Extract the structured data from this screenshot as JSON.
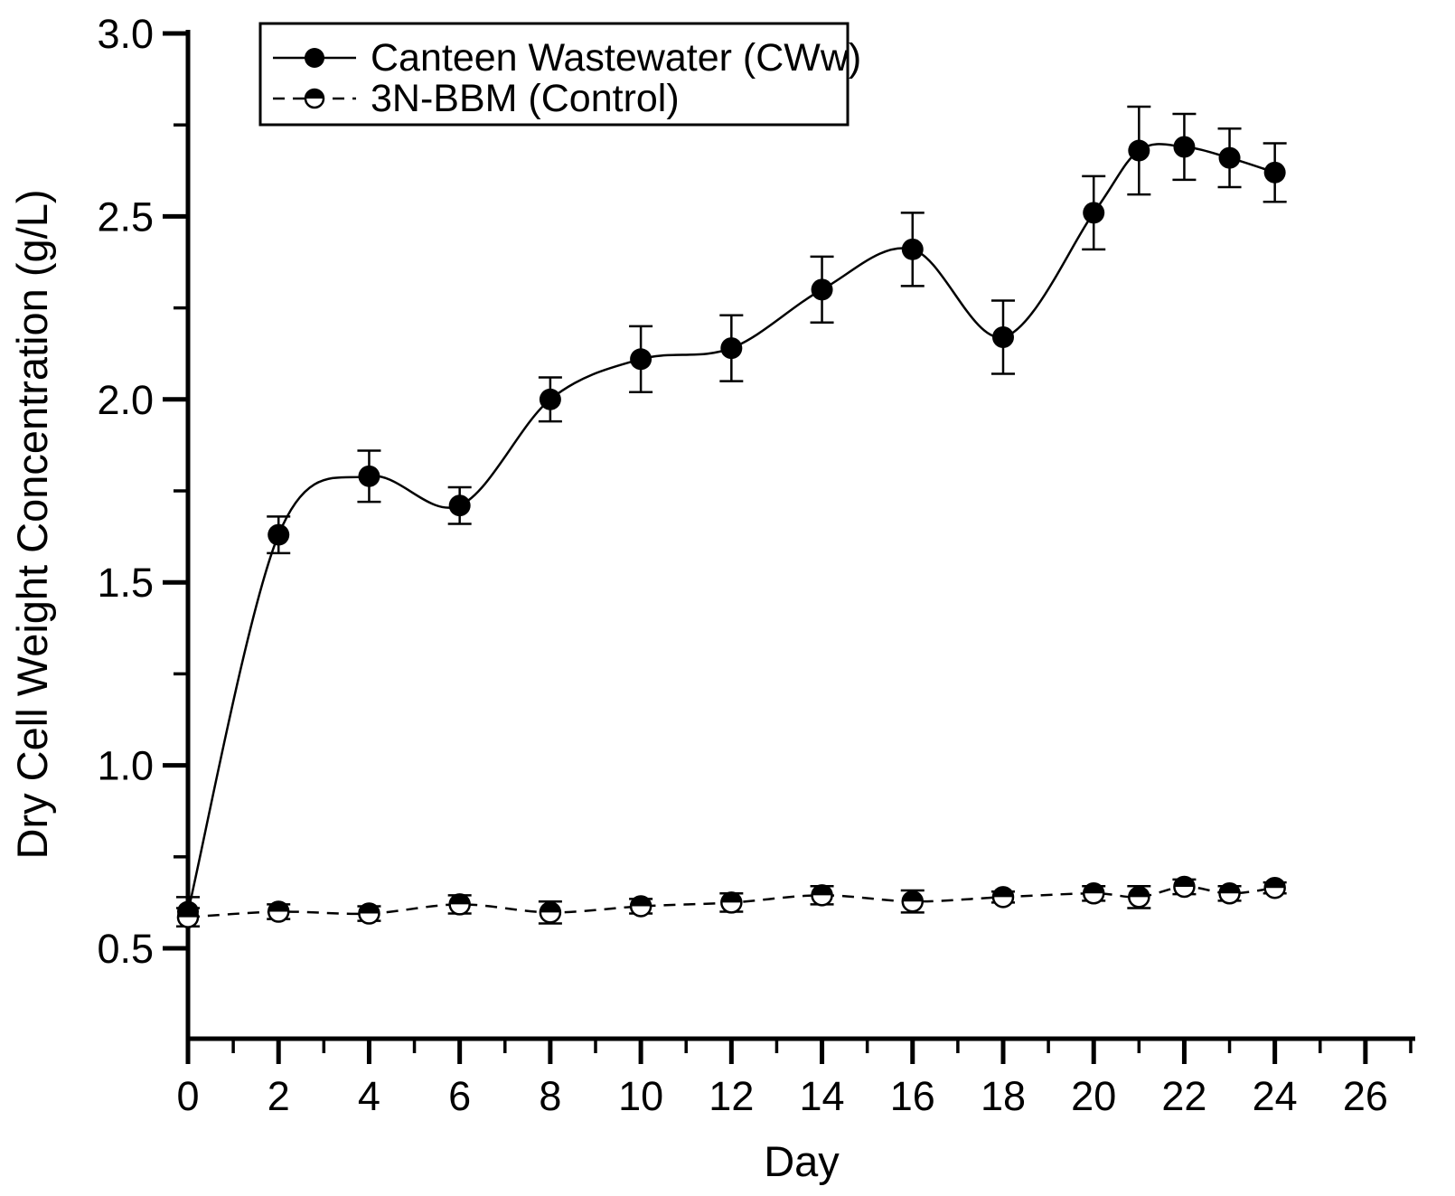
{
  "figure": {
    "background": "#ffffff",
    "foreground": "#000000"
  },
  "chart_data": {
    "type": "line",
    "title": "",
    "xlabel": "Day",
    "ylabel": "Dry Cell Weight Concentration (g/L)",
    "xlim": [
      0,
      27.1
    ],
    "ylim": [
      0.253,
      3.0
    ],
    "grid": false,
    "legend_position": "top-left-inside",
    "x_ticks": {
      "major": [
        0,
        2,
        4,
        6,
        8,
        10,
        12,
        14,
        16,
        18,
        20,
        22,
        24,
        26
      ],
      "labels": [
        "0",
        "2",
        "4",
        "6",
        "8",
        "10",
        "12",
        "14",
        "16",
        "18",
        "20",
        "22",
        "24",
        "26"
      ],
      "minor": [
        1,
        3,
        5,
        7,
        9,
        11,
        13,
        15,
        17,
        19,
        21,
        23,
        25,
        27
      ]
    },
    "y_ticks": {
      "major": [
        3.0,
        2.5,
        2.0,
        1.5,
        1.0,
        0.5
      ],
      "labels": [
        "3.0",
        "2.5",
        "2.0",
        "1.5",
        "1.0",
        "0.5"
      ],
      "minor": [
        2.75,
        2.25,
        1.75,
        1.25,
        0.75
      ]
    },
    "series": [
      {
        "name": "Canteen Wastewater (CWw)",
        "marker": "filled-circle",
        "line_style": "solid",
        "color": "#000000",
        "x": [
          0,
          2,
          4,
          6,
          8,
          10,
          12,
          14,
          16,
          18,
          20,
          21,
          22,
          23,
          24
        ],
        "y": [
          0.6,
          1.63,
          1.79,
          1.71,
          2.0,
          2.11,
          2.14,
          2.3,
          2.41,
          2.17,
          2.51,
          2.68,
          2.69,
          2.66,
          2.62
        ],
        "yerr": [
          0.04,
          0.05,
          0.07,
          0.05,
          0.06,
          0.09,
          0.09,
          0.09,
          0.1,
          0.1,
          0.1,
          0.12,
          0.09,
          0.08,
          0.08
        ]
      },
      {
        "name": "3N-BBM (Control)",
        "marker": "half-filled-circle",
        "line_style": "dashed",
        "color": "#000000",
        "x": [
          0,
          2,
          4,
          6,
          8,
          10,
          12,
          14,
          16,
          18,
          20,
          21,
          22,
          23,
          24
        ],
        "y": [
          0.585,
          0.6,
          0.595,
          0.62,
          0.598,
          0.615,
          0.625,
          0.645,
          0.628,
          0.64,
          0.65,
          0.64,
          0.668,
          0.65,
          0.665
        ],
        "yerr": [
          0.025,
          0.02,
          0.02,
          0.025,
          0.03,
          0.02,
          0.025,
          0.025,
          0.03,
          0.015,
          0.02,
          0.03,
          0.02,
          0.02,
          0.015
        ]
      }
    ]
  }
}
